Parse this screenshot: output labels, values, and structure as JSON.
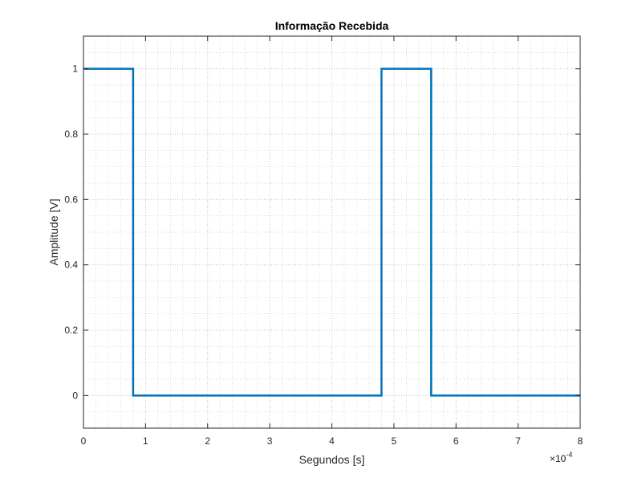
{
  "chart_data": {
    "type": "line",
    "title": "Informação Recebida",
    "xlabel": "Segundos [s]",
    "ylabel": "Amplitude [V]",
    "x_scale_label": "×10",
    "x_scale_exponent": "-4",
    "xlim": [
      0,
      8
    ],
    "ylim": [
      -0.1,
      1.1
    ],
    "x_ticks": [
      0,
      1,
      2,
      3,
      4,
      5,
      6,
      7,
      8
    ],
    "x_tick_labels": [
      "0",
      "1",
      "2",
      "3",
      "4",
      "5",
      "6",
      "7",
      "8"
    ],
    "y_ticks": [
      0,
      0.2,
      0.4,
      0.6,
      0.8,
      1
    ],
    "y_tick_labels": [
      "0",
      "0.2",
      "0.4",
      "0.6",
      "0.8",
      "1"
    ],
    "grid": true,
    "minor_grid": true,
    "series": [
      {
        "color": "#0072bd",
        "x": [
          0,
          0.8,
          0.8,
          4.8,
          4.8,
          5.6,
          5.6,
          8
        ],
        "y": [
          1,
          1,
          0,
          0,
          1,
          1,
          0,
          0
        ]
      }
    ]
  }
}
